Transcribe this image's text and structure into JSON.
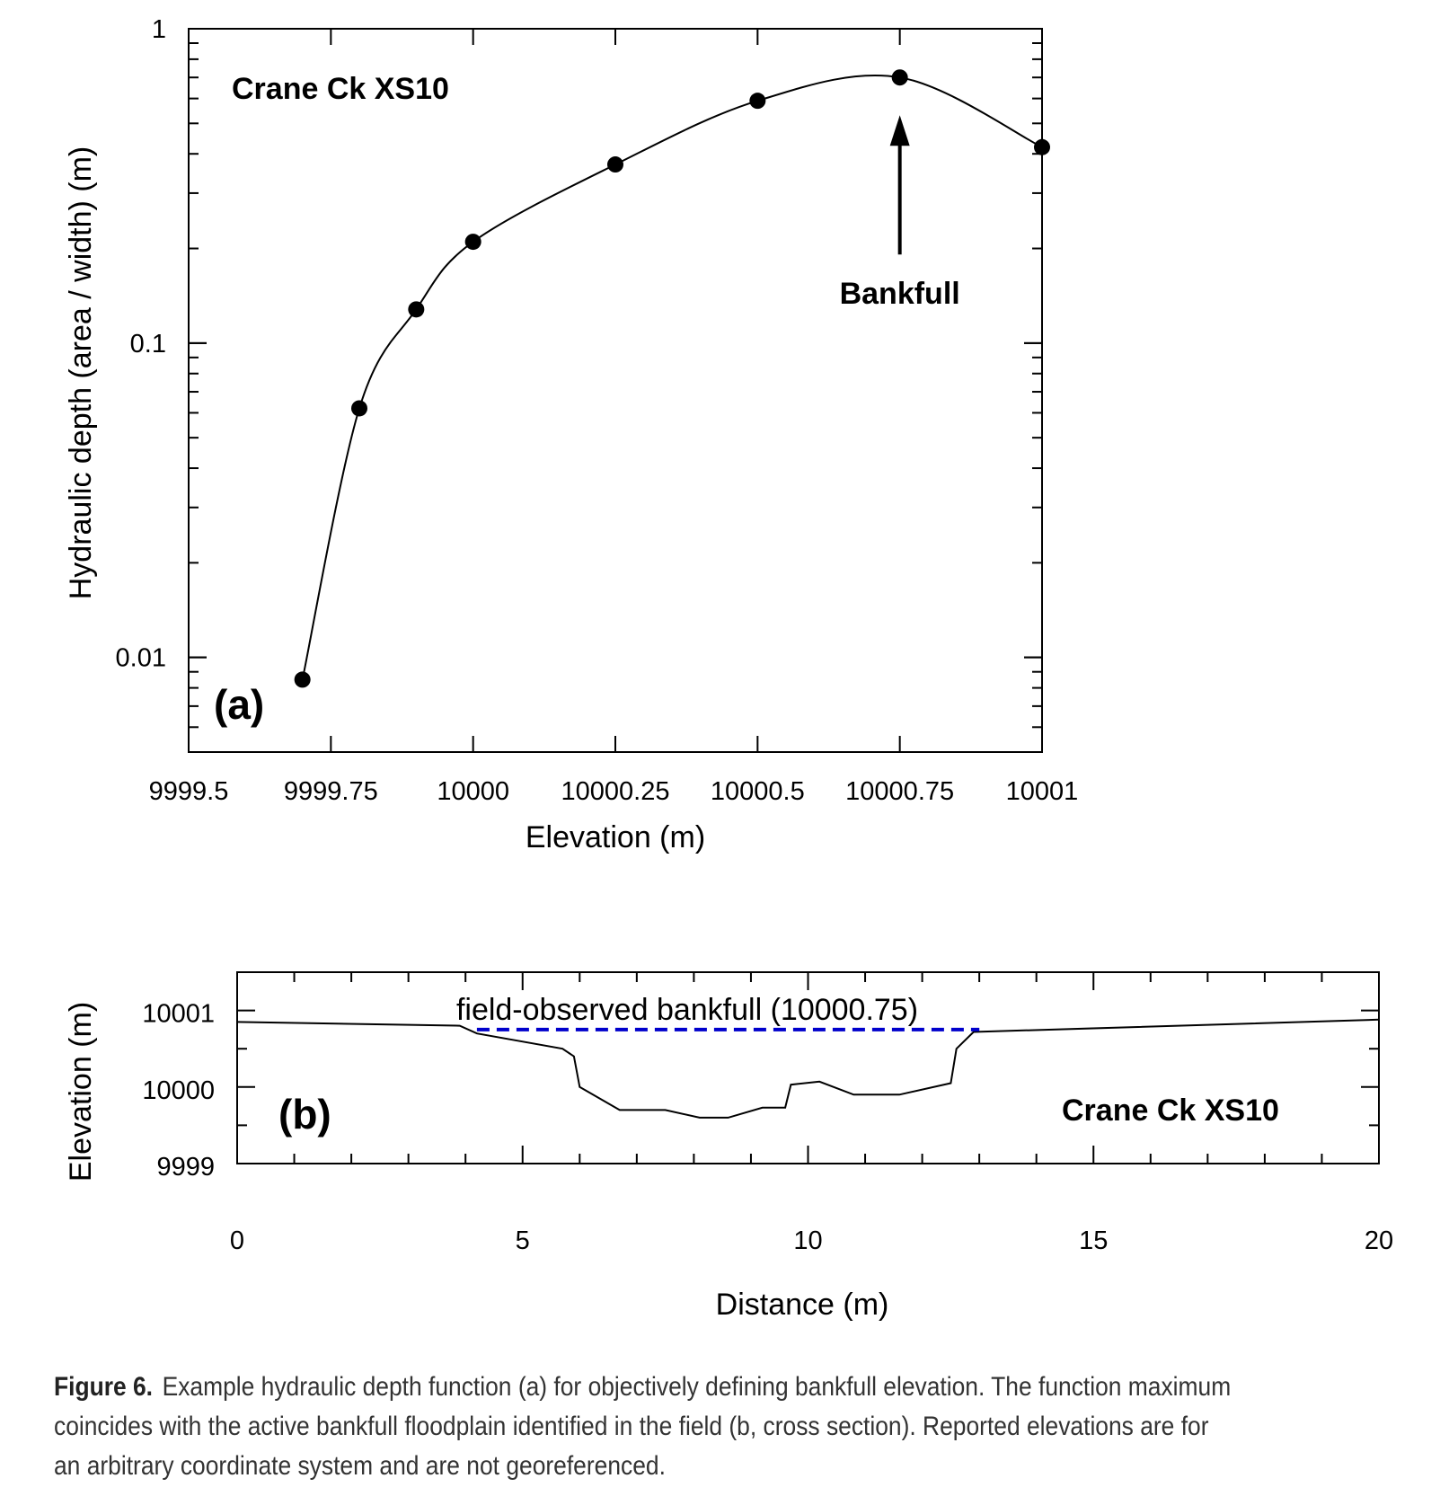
{
  "chart_data": [
    {
      "panel_label": "(a)",
      "type": "line",
      "annotation_title": "Crane Ck XS10",
      "xlabel": "Elevation (m)",
      "ylabel": "Hydraulic depth (area / width) (m)",
      "y_scale": "log",
      "xlim": [
        9999.5,
        10001
      ],
      "ylim": [
        0.005,
        1
      ],
      "x_ticks": [
        9999.5,
        9999.75,
        10000,
        10000.25,
        10000.5,
        10000.75,
        10001
      ],
      "x_tick_labels": [
        "9999.5",
        "9999.75",
        "10000",
        "10000.25",
        "10000.5",
        "10000.75",
        "10001"
      ],
      "y_ticks": [
        0.01,
        0.1,
        1
      ],
      "y_tick_labels": [
        "0.01",
        "0.1",
        "1"
      ],
      "series": [
        {
          "markers": "filled-circle",
          "x": [
            9999.7,
            9999.8,
            9999.9,
            10000,
            10000.25,
            10000.5,
            10000.75,
            10001
          ],
          "y": [
            0.0085,
            0.062,
            0.128,
            0.21,
            0.37,
            0.59,
            0.7,
            0.42
          ]
        }
      ],
      "annotation": {
        "text": "Bankfull",
        "arrow_x": 10000.75
      }
    },
    {
      "panel_label": "(b)",
      "type": "line",
      "annotation_title": "Crane Ck XS10",
      "xlabel": "Distance (m)",
      "ylabel": "Elevation (m)",
      "xlim": [
        0,
        20
      ],
      "ylim": [
        9999,
        10001.5
      ],
      "x_ticks": [
        0,
        5,
        10,
        15,
        20
      ],
      "x_tick_labels": [
        "0",
        "5",
        "10",
        "15",
        "20"
      ],
      "y_ticks": [
        9999,
        10000,
        10001
      ],
      "y_tick_labels": [
        "9999",
        "10000",
        "10001"
      ],
      "series": [
        {
          "x": [
            0,
            3.9,
            4.2,
            5.7,
            5.9,
            6.0,
            6.7,
            7.5,
            8.1,
            8.6,
            9.2,
            9.6,
            9.7,
            10.2,
            10.8,
            11.6,
            12.5,
            12.6,
            12.9,
            20
          ],
          "y": [
            10000.85,
            10000.8,
            10000.7,
            10000.5,
            10000.4,
            10000.0,
            9999.7,
            9999.7,
            9999.6,
            9999.6,
            9999.73,
            9999.73,
            10000.03,
            10000.07,
            9999.9,
            9999.9,
            10000.05,
            10000.5,
            10000.72,
            10000.88
          ]
        },
        {
          "style": "dashed",
          "color": "#0000cc",
          "x": [
            4.2,
            13.0
          ],
          "y": [
            10000.75,
            10000.75
          ]
        }
      ],
      "annotation": {
        "text": "field-observed bankfull (10000.75)"
      }
    }
  ],
  "caption": {
    "label": "Figure 6.",
    "text": "Example hydraulic depth function (a) for objectively defining bankfull elevation. The function maximum coincides with the active bankfull floodplain identified in the field (b, cross section). Reported elevations are for an arbitrary coordinate system and are not georeferenced."
  }
}
